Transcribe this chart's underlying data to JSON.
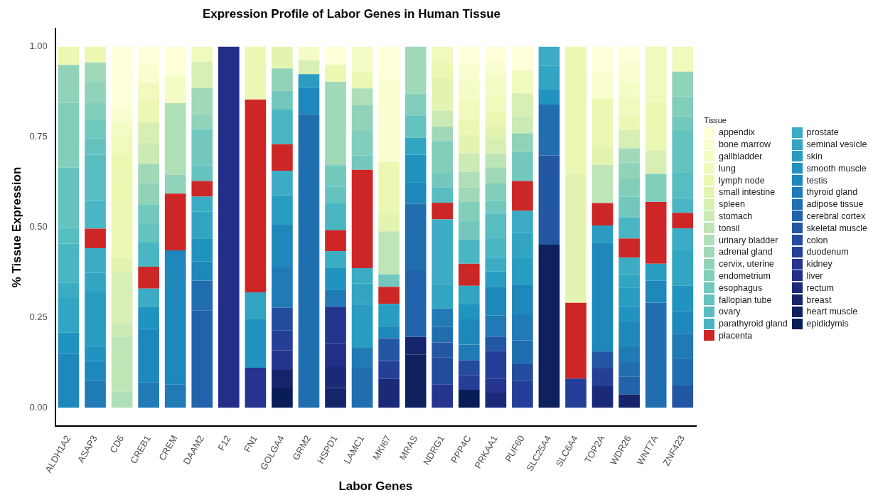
{
  "chart_data": {
    "type": "bar",
    "stacked": true,
    "title": "Expression Profile of Labor Genes in Human Tissue",
    "xlabel": "Labor Genes",
    "ylabel": "% Tissue Expression",
    "legend_title": "Tissue",
    "legend": "right",
    "grid": false,
    "categories": [
      "ALDH1A2",
      "ASAP3",
      "CD6",
      "CREB1",
      "CREM",
      "DAAM2",
      "F12",
      "FN1",
      "GOLGA4",
      "GRM2",
      "HSPD1",
      "LAMC1",
      "MKI67",
      "MRAS",
      "NDRG1",
      "PPP4C",
      "PRKAA1",
      "PUF60",
      "SLC25A4",
      "SLC6A4",
      "TOP2A",
      "WDR26",
      "WNT7A",
      "ZNF423"
    ],
    "ylim": [
      -0.05,
      1.05
    ],
    "yticks": [
      {
        "value": 0,
        "label": "0.00"
      },
      {
        "value": 0.25,
        "label": "0.25"
      },
      {
        "value": 0.5,
        "label": "0.50"
      },
      {
        "value": 0.75,
        "label": "0.75"
      },
      {
        "value": 1,
        "label": "1.00"
      }
    ],
    "series": [
      {
        "name": "epididymis",
        "color": "#081d58",
        "values": [
          0,
          0,
          0,
          0,
          0,
          0,
          0,
          0,
          0.054,
          0,
          0,
          0,
          0,
          0,
          0,
          0.05,
          0,
          0,
          0,
          0,
          0,
          0,
          0,
          0
        ]
      },
      {
        "name": "heart muscle",
        "color": "#0f205e",
        "values": [
          0,
          0,
          0,
          0,
          0,
          0,
          0,
          0,
          0,
          0,
          0,
          0,
          0,
          0.148,
          0,
          0,
          0,
          0,
          0.452,
          0,
          0,
          0,
          0,
          0
        ]
      },
      {
        "name": "breast",
        "color": "#15246b",
        "values": [
          0,
          0,
          0,
          0,
          0,
          0,
          0,
          0,
          0.051,
          0,
          0.055,
          0,
          0,
          0.048,
          0,
          0,
          0,
          0,
          0,
          0,
          0,
          0.037,
          0,
          0
        ]
      },
      {
        "name": "rectum",
        "color": "#1a2a78",
        "values": [
          0,
          0,
          0,
          0,
          0,
          0,
          0,
          0,
          0,
          0,
          0.06,
          0,
          0.08,
          0,
          0,
          0,
          0.042,
          0,
          0,
          0,
          0.06,
          0,
          0,
          0
        ]
      },
      {
        "name": "liver",
        "color": "#222e87",
        "values": [
          0,
          0,
          0,
          0,
          0,
          0,
          1,
          0,
          0,
          0,
          0.062,
          0,
          0,
          0,
          0,
          0,
          0,
          0,
          0,
          0,
          0,
          0,
          0,
          0
        ]
      },
      {
        "name": "kidney",
        "color": "#24348f",
        "values": [
          0,
          0,
          0,
          0,
          0,
          0,
          0,
          0.111,
          0.054,
          0,
          0.103,
          0,
          0,
          0,
          0.065,
          0,
          0.039,
          0,
          0,
          0,
          0,
          0,
          0,
          0
        ]
      },
      {
        "name": "duodenum",
        "color": "#243f98",
        "values": [
          0,
          0,
          0,
          0,
          0,
          0,
          0,
          0,
          0.055,
          0,
          0,
          0,
          0.05,
          0,
          0,
          0.041,
          0.077,
          0.074,
          0,
          0.081,
          0.049,
          0,
          0,
          0
        ]
      },
      {
        "name": "colon",
        "color": "#234b9e",
        "values": [
          0,
          0,
          0,
          0,
          0,
          0,
          0,
          0,
          0.063,
          0,
          0,
          0,
          0,
          0,
          0.075,
          0.041,
          0,
          0.047,
          0,
          0,
          0,
          0,
          0,
          0
        ]
      },
      {
        "name": "skeletal muscle",
        "color": "#2257a4",
        "values": [
          0,
          0,
          0,
          0,
          0,
          0,
          0,
          0,
          0,
          0,
          0,
          0,
          0.063,
          0,
          0.041,
          0,
          0.038,
          0,
          0.247,
          0,
          0.047,
          0,
          0,
          0.062
        ]
      },
      {
        "name": "cerebral cortex",
        "color": "#2163aa",
        "values": [
          0,
          0,
          0,
          0,
          0,
          0.27,
          0,
          0,
          0,
          0,
          0,
          0,
          0,
          0.185,
          0,
          0,
          0,
          0,
          0,
          0,
          0,
          0.05,
          0,
          0
        ]
      },
      {
        "name": "adipose tissue",
        "color": "#206eb0",
        "values": [
          0,
          0,
          0,
          0,
          0,
          0.082,
          0,
          0,
          0,
          0.813,
          0,
          0.111,
          0,
          0.184,
          0.043,
          0,
          0,
          0.066,
          0.141,
          0,
          0,
          0.038,
          0.291,
          0.076
        ]
      },
      {
        "name": "thyroid gland",
        "color": "#1f7ab6",
        "values": [
          0,
          0.075,
          0,
          0.07,
          0.064,
          0,
          0,
          0,
          0.112,
          0,
          0.046,
          0.055,
          0,
          0,
          0.051,
          0.043,
          0.06,
          0.07,
          0,
          0,
          0,
          0.045,
          0,
          0.067
        ]
      },
      {
        "name": "testis",
        "color": "#1e87bb",
        "values": [
          0.149,
          0.055,
          0,
          0.149,
          0.372,
          0.054,
          0,
          0,
          0.118,
          0.074,
          0,
          0,
          0.032,
          0.06,
          0,
          0.07,
          0.079,
          0.085,
          0,
          0,
          0.3,
          0.067,
          0.061,
          0.063
        ]
      },
      {
        "name": "smooth muscle",
        "color": "#2093c0",
        "values": [
          0.059,
          0.041,
          0,
          0.061,
          0,
          0.063,
          0,
          0.134,
          0,
          0,
          0.061,
          0,
          0,
          0.076,
          0,
          0.043,
          0,
          0,
          0.043,
          0,
          0,
          0.044,
          0,
          0.07
        ]
      },
      {
        "name": "skin",
        "color": "#289cc1",
        "values": [
          0,
          0.151,
          0,
          0,
          0,
          0,
          0,
          0,
          0.082,
          0.037,
          0,
          0.121,
          0.063,
          0,
          0,
          0,
          0.043,
          0.076,
          0,
          0,
          0.049,
          0.051,
          0.047,
          0
        ]
      },
      {
        "name": "seminal vesicle",
        "color": "#31a5c2",
        "values": [
          0.096,
          0.052,
          0,
          0,
          0,
          0.074,
          0,
          0.075,
          0,
          0,
          0,
          0.057,
          0,
          0.047,
          0.068,
          0.05,
          0,
          0.069,
          0.064,
          0,
          0,
          0.038,
          0,
          0.098
        ]
      },
      {
        "name": "prostate",
        "color": "#3bacc3",
        "values": [
          0.043,
          0.068,
          0,
          0.05,
          0,
          0.042,
          0,
          0,
          0.068,
          0,
          0.047,
          0.043,
          0,
          0,
          0.179,
          0,
          0.038,
          0.059,
          0.053,
          0,
          0,
          0.046,
          0,
          0.061
        ]
      },
      {
        "name": "placenta",
        "color": "#cd2626",
        "values": [
          0,
          0.054,
          0,
          0.061,
          0.157,
          0.043,
          0,
          0.534,
          0.073,
          0,
          0.058,
          0.272,
          0.047,
          0,
          0.046,
          0.061,
          0,
          0.082,
          0,
          0.21,
          0.062,
          0.053,
          0.171,
          0.043
        ]
      },
      {
        "name": "parathyroid gland",
        "color": "#4ab6c3",
        "values": [
          0.108,
          0.079,
          0,
          0.067,
          0,
          0,
          0,
          0,
          0.096,
          0,
          0.074,
          0,
          0,
          0,
          0,
          0.067,
          0.056,
          0,
          0,
          0,
          0,
          0.058,
          0,
          0.041
        ]
      },
      {
        "name": "ovary",
        "color": "#57bdc1",
        "values": [
          0.043,
          0.126,
          0,
          0,
          0,
          0,
          0,
          0,
          0,
          0,
          0,
          0,
          0,
          0,
          0.043,
          0,
          0.066,
          0,
          0,
          0,
          0,
          0,
          0,
          0.07
        ]
      },
      {
        "name": "fallopian tube",
        "color": "#65c3bf",
        "values": [
          0.167,
          0.046,
          0,
          0.051,
          0,
          0.044,
          0,
          0,
          0,
          0,
          0.047,
          0,
          0,
          0.062,
          0,
          0,
          0,
          0,
          0,
          0,
          0,
          0,
          0,
          0.118
        ]
      },
      {
        "name": "esophagus",
        "color": "#72c8bd",
        "values": [
          0,
          0.053,
          0,
          0.053,
          0,
          0.1,
          0,
          0,
          0.052,
          0,
          0.059,
          0.04,
          0.035,
          0,
          0.038,
          0.051,
          0.037,
          0.081,
          0,
          0,
          0,
          0.058,
          0,
          0.038
        ]
      },
      {
        "name": "endometrium",
        "color": "#81cebb",
        "values": [
          0.18,
          0.044,
          0,
          0,
          0,
          0,
          0,
          0,
          0,
          0,
          0,
          0.068,
          0,
          0.06,
          0.09,
          0.053,
          0.048,
          0,
          0,
          0,
          0,
          0.048,
          0.078,
          0.055
        ]
      },
      {
        "name": "cervix, uterine",
        "color": "#90d3b9",
        "values": [
          0.105,
          0.059,
          0,
          0.061,
          0.053,
          0.041,
          0,
          0,
          0.062,
          0,
          0,
          0.071,
          0,
          0,
          0,
          0,
          0,
          0.051,
          0,
          0,
          0,
          0.046,
          0,
          0.069
        ]
      },
      {
        "name": "adrenal gland",
        "color": "#a0d9b8",
        "values": [
          0,
          0.053,
          0,
          0.053,
          0,
          0.073,
          0,
          0,
          0,
          0,
          0.231,
          0,
          0,
          0.13,
          0.04,
          0.04,
          0.043,
          0,
          0,
          0,
          0,
          0.04,
          0,
          0
        ]
      },
      {
        "name": "urinary bladder",
        "color": "#afdfb6",
        "values": [
          0,
          0,
          0.045,
          0,
          0.198,
          0,
          0,
          0,
          0,
          0,
          0,
          0.047,
          0,
          0,
          0,
          0.044,
          0,
          0,
          0,
          0,
          0,
          0,
          0,
          0
        ]
      },
      {
        "name": "tonsil",
        "color": "#bee5b5",
        "values": [
          0,
          0,
          0.152,
          0,
          0,
          0,
          0,
          0,
          0,
          0,
          0,
          0,
          0.119,
          0,
          0,
          0,
          0.038,
          0,
          0,
          0,
          0.106,
          0,
          0,
          0
        ]
      },
      {
        "name": "stomach",
        "color": "#cbeab4",
        "values": [
          0,
          0,
          0.037,
          0.058,
          0,
          0,
          0,
          0,
          0,
          0,
          0,
          0,
          0,
          0,
          0.044,
          0.051,
          0,
          0.047,
          0,
          0,
          0,
          0,
          0,
          0
        ]
      },
      {
        "name": "spleen",
        "color": "#d8efb3",
        "values": [
          0,
          0,
          0.142,
          0.056,
          0,
          0.073,
          0,
          0,
          0,
          0.038,
          0,
          0,
          0,
          0,
          0,
          0,
          0.043,
          0.064,
          0,
          0,
          0,
          0.05,
          0.065,
          0
        ]
      },
      {
        "name": "small intestine",
        "color": "#e3f4b1",
        "values": [
          0,
          0,
          0.04,
          0,
          0,
          0,
          0,
          0,
          0.06,
          0,
          0,
          0,
          0.053,
          0,
          0.09,
          0.051,
          0.036,
          0,
          0,
          0.359,
          0.051,
          0,
          0,
          0
        ]
      },
      {
        "name": "lymph node",
        "color": "#ecf8b2",
        "values": [
          0.05,
          0.044,
          0.288,
          0.063,
          0,
          0,
          0,
          0.146,
          0,
          0,
          0.047,
          0.044,
          0.139,
          0,
          0.046,
          0.041,
          0.039,
          0,
          0,
          0.35,
          0.132,
          0.04,
          0.131,
          0
        ]
      },
      {
        "name": "lung",
        "color": "#f1f9bc",
        "values": [
          0,
          0,
          0.053,
          0.046,
          0,
          0.041,
          0,
          0,
          0,
          0,
          0,
          0,
          0,
          0,
          0.041,
          0.059,
          0.042,
          0.063,
          0,
          0,
          0,
          0.049,
          0.156,
          0.069
        ]
      },
      {
        "name": "gallbladder",
        "color": "#f5fbc5",
        "values": [
          0,
          0,
          0.036,
          0,
          0.077,
          0,
          0,
          0,
          0,
          0.038,
          0,
          0.071,
          0,
          0,
          0,
          0.05,
          0.059,
          0,
          0,
          0,
          0,
          0.046,
          0,
          0
        ]
      },
      {
        "name": "bone marrow",
        "color": "#fafdcf",
        "values": [
          0,
          0,
          0.04,
          0.05,
          0,
          0,
          0,
          0,
          0,
          0,
          0,
          0,
          0.228,
          0,
          0,
          0.043,
          0.034,
          0,
          0,
          0,
          0.073,
          0.055,
          0,
          0
        ]
      },
      {
        "name": "appendix",
        "color": "#ffffd9",
        "values": [
          0,
          0,
          0.167,
          0.051,
          0.079,
          0,
          0,
          0,
          0,
          0,
          0.05,
          0,
          0.091,
          0,
          0,
          0.051,
          0.043,
          0.066,
          0,
          0,
          0.071,
          0.041,
          0,
          0
        ]
      }
    ]
  }
}
